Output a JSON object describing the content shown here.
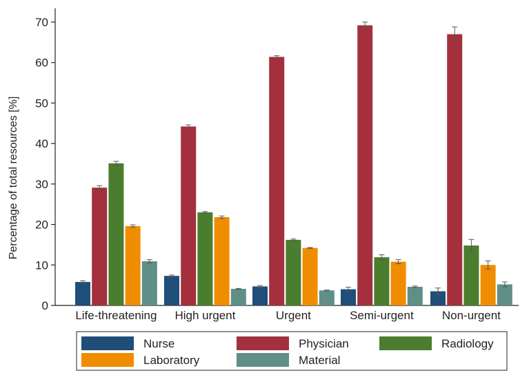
{
  "chart_data": {
    "type": "bar",
    "ylabel": "Percentage of total resources [%]",
    "xlabel": "",
    "ylim": [
      0,
      70
    ],
    "yticks": [
      0,
      10,
      20,
      30,
      40,
      50,
      60,
      70
    ],
    "grid": false,
    "legend_position": "bottom",
    "categories": [
      "Life-threatening",
      "High urgent",
      "Urgent",
      "Semi-urgent",
      "Non-urgent"
    ],
    "series": [
      {
        "name": "Nurse",
        "color": "#1f4e79",
        "values": [
          5.8,
          7.3,
          4.7,
          4.0,
          3.5
        ],
        "error": [
          0.3,
          0.2,
          0.2,
          0.5,
          0.8
        ]
      },
      {
        "name": "Physician",
        "color": "#a3303c",
        "values": [
          29.1,
          44.2,
          61.4,
          69.2,
          67.0
        ],
        "error": [
          0.5,
          0.4,
          0.3,
          0.8,
          1.8
        ]
      },
      {
        "name": "Radiology",
        "color": "#4a7d2e",
        "values": [
          35.1,
          23.0,
          16.2,
          11.9,
          14.8
        ],
        "error": [
          0.5,
          0.2,
          0.2,
          0.6,
          1.5
        ]
      },
      {
        "name": "Laboratory",
        "color": "#f08c00",
        "values": [
          19.6,
          21.8,
          14.2,
          10.8,
          10.0
        ],
        "error": [
          0.3,
          0.3,
          0.1,
          0.5,
          1.0
        ]
      },
      {
        "name": "Material",
        "color": "#5f8f87",
        "values": [
          10.9,
          4.1,
          3.7,
          4.6,
          5.2
        ],
        "error": [
          0.4,
          0.1,
          0.1,
          0.2,
          0.6
        ]
      }
    ]
  }
}
